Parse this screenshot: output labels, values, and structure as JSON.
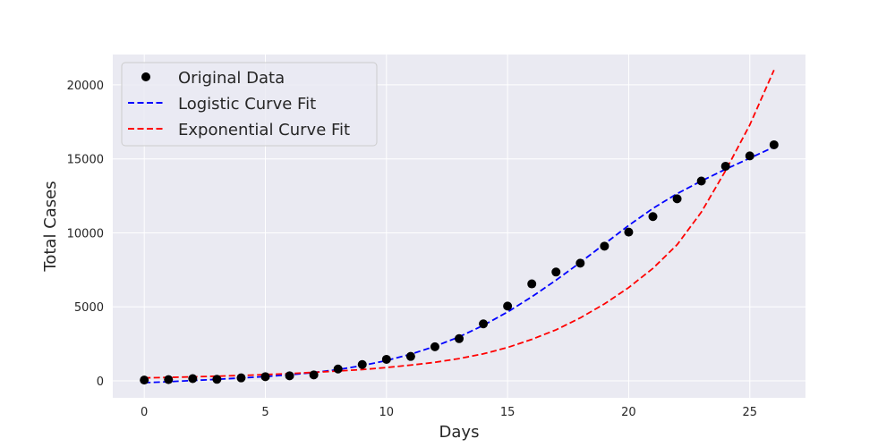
{
  "chart_data": {
    "type": "line",
    "title": "",
    "xlabel": "Days",
    "ylabel": "Total Cases",
    "xlim": [
      -1.3,
      27.3
    ],
    "ylim": [
      -1150,
      22050
    ],
    "xticks": [
      0,
      5,
      10,
      15,
      20,
      25
    ],
    "yticks": [
      0,
      5000,
      10000,
      15000,
      20000
    ],
    "grid": true,
    "legend_position": "top-left",
    "colors": {
      "background": "#eaeaf2",
      "grid": "#ffffff",
      "original": "#000000",
      "logistic": "#0000ff",
      "exponential": "#ff0000"
    },
    "series": [
      {
        "name": "Original Data",
        "style": "markers",
        "x": [
          0,
          1,
          2,
          3,
          4,
          5,
          6,
          7,
          8,
          9,
          10,
          11,
          12,
          13,
          14,
          15,
          16,
          17,
          18,
          19,
          20,
          21,
          22,
          23,
          24,
          25,
          26
        ],
        "y": [
          50,
          80,
          150,
          100,
          200,
          280,
          340,
          400,
          800,
          1100,
          1450,
          1650,
          2300,
          2850,
          3850,
          5050,
          6550,
          7350,
          7950,
          9100,
          10050,
          11100,
          12300,
          13500,
          14500,
          15200,
          15950
        ]
      },
      {
        "name": "Logistic Curve Fit",
        "style": "dashed",
        "x": [
          0,
          1,
          2,
          3,
          4,
          5,
          6,
          7,
          8,
          9,
          10,
          11,
          12,
          13,
          14,
          15,
          16,
          17,
          18,
          19,
          20,
          21,
          22,
          23,
          24,
          25,
          26
        ],
        "y": [
          -120,
          -60,
          20,
          100,
          190,
          290,
          410,
          560,
          760,
          1030,
          1370,
          1800,
          2330,
          2970,
          3750,
          4650,
          5680,
          6800,
          8000,
          9250,
          10500,
          11650,
          12650,
          13500,
          14300,
          15050,
          15800
        ]
      },
      {
        "name": "Exponential Curve Fit",
        "style": "dashed",
        "x": [
          0,
          1,
          2,
          3,
          4,
          5,
          6,
          7,
          8,
          9,
          10,
          11,
          12,
          13,
          14,
          15,
          16,
          17,
          18,
          19,
          20,
          21,
          22,
          23,
          24,
          25,
          26
        ],
        "y": [
          200,
          230,
          270,
          310,
          360,
          420,
          490,
          570,
          660,
          760,
          900,
          1060,
          1250,
          1500,
          1820,
          2250,
          2800,
          3450,
          4250,
          5200,
          6300,
          7600,
          9200,
          11400,
          14200,
          17300,
          21000
        ]
      }
    ]
  }
}
